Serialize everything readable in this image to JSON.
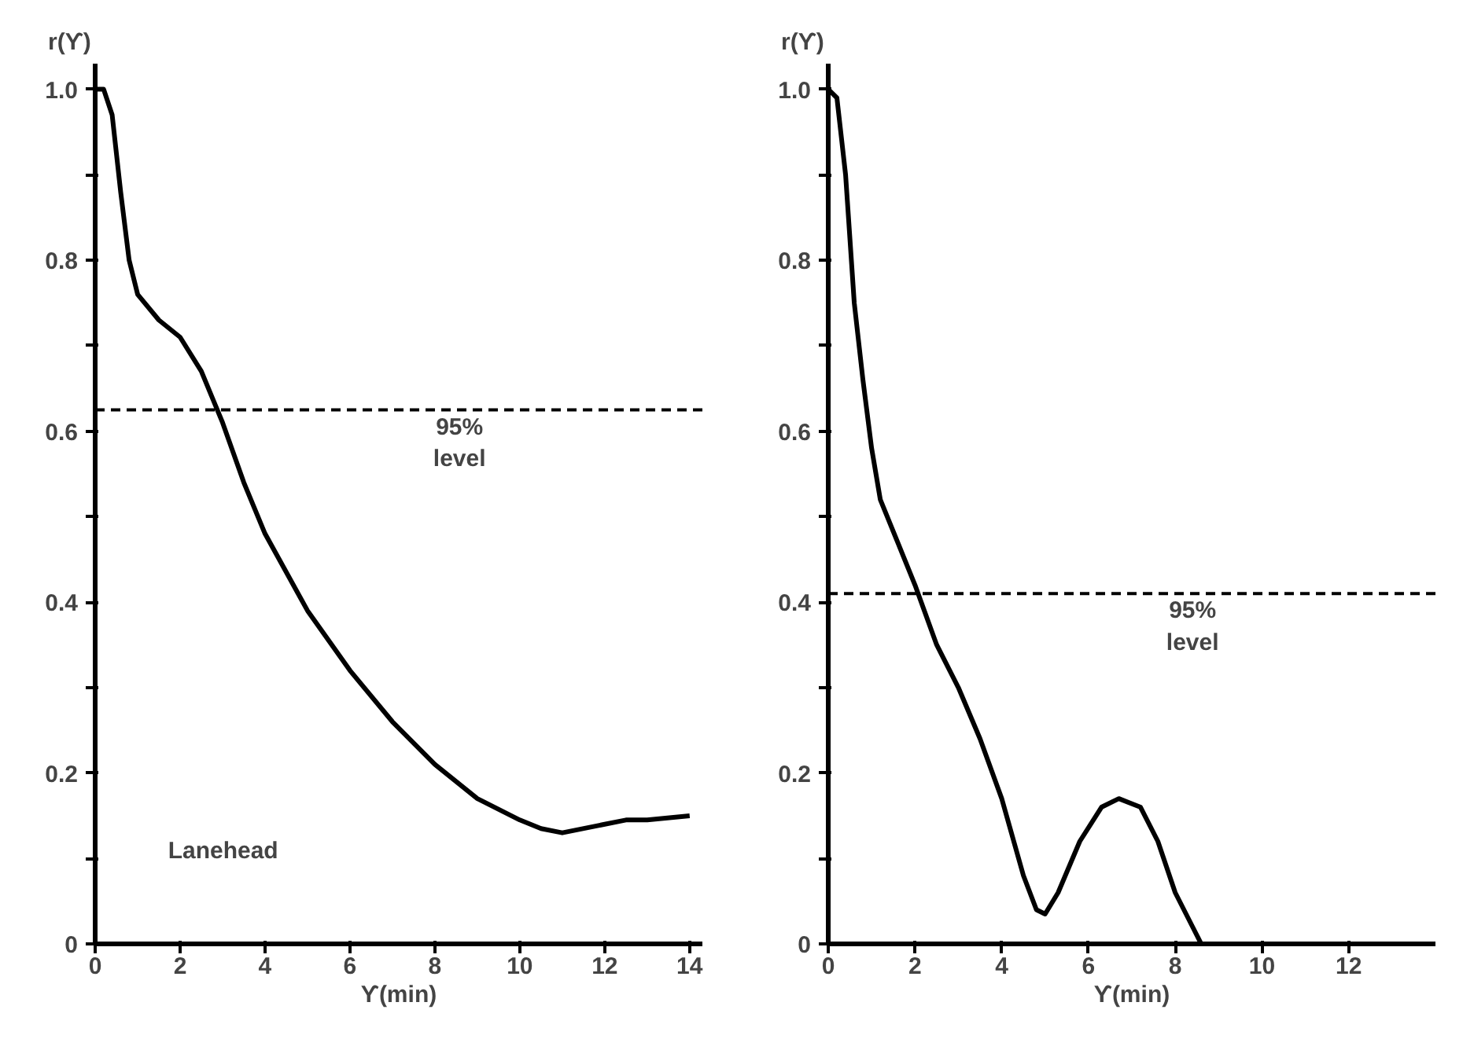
{
  "chart_data": [
    {
      "type": "line",
      "xlabel": "ϒ(min)",
      "ylabel": "r(ϒ)",
      "xlim": [
        0,
        14.3
      ],
      "ylim": [
        0,
        1.03
      ],
      "xticks": [
        0,
        2,
        4,
        6,
        8,
        10,
        12,
        14
      ],
      "yticks": [
        0,
        {
          "value": 0.1,
          "label": null
        },
        0.2,
        {
          "value": 0.3,
          "label": null
        },
        0.4,
        {
          "value": 0.5,
          "label": null
        },
        0.6,
        {
          "value": 0.7,
          "label": null
        },
        0.8,
        {
          "value": 0.9,
          "label": null
        },
        {
          "value": 1.0,
          "label": "1.0"
        }
      ],
      "grid": false,
      "marker": "none",
      "line_style": "solid",
      "series": [
        {
          "color": "#000000",
          "x": [
            0,
            0.2,
            0.4,
            0.6,
            0.8,
            1.0,
            1.5,
            2.0,
            2.5,
            3.0,
            3.5,
            4.0,
            5.0,
            6.0,
            7.0,
            8.0,
            9.0,
            10.0,
            10.5,
            11.0,
            12.0,
            12.5,
            13.0,
            14.0
          ],
          "values": [
            1.0,
            1.0,
            0.97,
            0.88,
            0.8,
            0.76,
            0.73,
            0.71,
            0.67,
            0.61,
            0.54,
            0.48,
            0.39,
            0.32,
            0.26,
            0.21,
            0.17,
            0.145,
            0.135,
            0.13,
            0.14,
            0.145,
            0.145,
            0.15
          ]
        }
      ],
      "ref_lines": [
        {
          "axis": "y",
          "value": 0.625,
          "label": "95%\nlevel",
          "line_style": "dashed",
          "color": "#000000"
        }
      ],
      "annotations": [
        "Lanehead"
      ]
    },
    {
      "type": "line",
      "xlabel": "ϒ(min)",
      "ylabel": "r(ϒ)",
      "xlim": [
        0,
        14
      ],
      "ylim": [
        0,
        1.03
      ],
      "xticks": [
        0,
        2,
        4,
        6,
        8,
        10,
        12
      ],
      "yticks": [
        0,
        {
          "value": 0.1,
          "label": null
        },
        0.2,
        {
          "value": 0.3,
          "label": null
        },
        0.4,
        {
          "value": 0.5,
          "label": null
        },
        0.6,
        {
          "value": 0.7,
          "label": null
        },
        0.8,
        {
          "value": 0.9,
          "label": null
        },
        {
          "value": 1.0,
          "label": "1.0"
        }
      ],
      "grid": false,
      "marker": "none",
      "line_style": "solid",
      "series": [
        {
          "color": "#000000",
          "x": [
            0,
            0.2,
            0.4,
            0.6,
            0.8,
            1.0,
            1.2,
            1.6,
            2.0,
            2.5,
            3.0,
            3.5,
            4.0,
            4.5,
            4.8,
            5.0,
            5.3,
            5.8,
            6.3,
            6.7,
            7.2,
            7.6,
            8.0,
            8.4,
            8.6
          ],
          "values": [
            1.0,
            0.99,
            0.9,
            0.75,
            0.66,
            0.58,
            0.52,
            0.47,
            0.42,
            0.35,
            0.3,
            0.24,
            0.17,
            0.08,
            0.04,
            0.035,
            0.06,
            0.12,
            0.16,
            0.17,
            0.16,
            0.12,
            0.06,
            0.02,
            0.0
          ]
        }
      ],
      "ref_lines": [
        {
          "axis": "y",
          "value": 0.41,
          "label": "95%\nlevel",
          "line_style": "dashed",
          "color": "#000000"
        }
      ]
    }
  ]
}
